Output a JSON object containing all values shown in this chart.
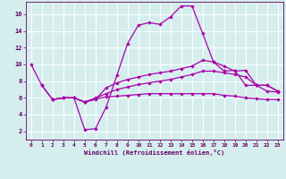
{
  "background_color": "#d5eeed",
  "line_color": "#aa00aa",
  "grid_color": "#b8dede",
  "xlabel": "Windchill (Refroidissement éolien,°C)",
  "tick_color": "#660066",
  "xlim": [
    -0.5,
    23.5
  ],
  "ylim": [
    1.0,
    17.5
  ],
  "yticks": [
    2,
    4,
    6,
    8,
    10,
    12,
    14,
    16
  ],
  "xticks": [
    0,
    1,
    2,
    3,
    4,
    5,
    6,
    7,
    8,
    9,
    10,
    11,
    12,
    13,
    14,
    15,
    16,
    17,
    18,
    19,
    20,
    21,
    22,
    23
  ],
  "curves": [
    {
      "x": [
        0,
        1,
        2,
        3,
        4,
        5,
        6,
        7,
        8,
        9,
        10,
        11,
        12,
        13,
        14,
        15,
        16,
        17,
        18,
        19,
        20,
        21,
        22,
        23
      ],
      "y": [
        10,
        7.5,
        5.8,
        6.0,
        6.0,
        2.2,
        2.3,
        4.9,
        8.7,
        12.5,
        14.7,
        15.0,
        14.8,
        15.7,
        17.0,
        17.0,
        13.7,
        10.3,
        9.2,
        9.3,
        7.5,
        7.5,
        6.8,
        6.7
      ]
    },
    {
      "x": [
        1,
        2,
        3,
        4,
        5,
        6,
        7,
        8,
        9,
        10,
        11,
        12,
        13,
        14,
        15,
        16,
        17,
        18,
        19,
        20,
        21,
        22,
        23
      ],
      "y": [
        7.5,
        5.8,
        6.0,
        6.0,
        5.5,
        5.8,
        7.2,
        7.8,
        8.2,
        8.5,
        8.8,
        9.0,
        9.2,
        9.5,
        9.8,
        10.5,
        10.3,
        9.8,
        9.2,
        9.3,
        7.5,
        7.5,
        6.8
      ]
    },
    {
      "x": [
        2,
        3,
        4,
        5,
        6,
        7,
        8,
        9,
        10,
        11,
        12,
        13,
        14,
        15,
        16,
        17,
        18,
        19,
        20,
        21,
        22,
        23
      ],
      "y": [
        5.8,
        6.0,
        6.0,
        5.5,
        6.0,
        6.5,
        7.0,
        7.3,
        7.6,
        7.8,
        8.0,
        8.2,
        8.5,
        8.8,
        9.2,
        9.2,
        9.0,
        8.8,
        8.5,
        7.5,
        7.5,
        6.8
      ]
    },
    {
      "x": [
        2,
        3,
        4,
        5,
        6,
        7,
        8,
        9,
        10,
        11,
        12,
        13,
        14,
        15,
        16,
        17,
        18,
        19,
        20,
        21,
        22,
        23
      ],
      "y": [
        5.8,
        6.0,
        6.0,
        5.5,
        5.9,
        6.1,
        6.2,
        6.3,
        6.4,
        6.5,
        6.5,
        6.5,
        6.5,
        6.5,
        6.5,
        6.5,
        6.3,
        6.2,
        6.0,
        5.9,
        5.8,
        5.8
      ]
    }
  ],
  "fig_width": 3.2,
  "fig_height": 2.0,
  "dpi": 100
}
